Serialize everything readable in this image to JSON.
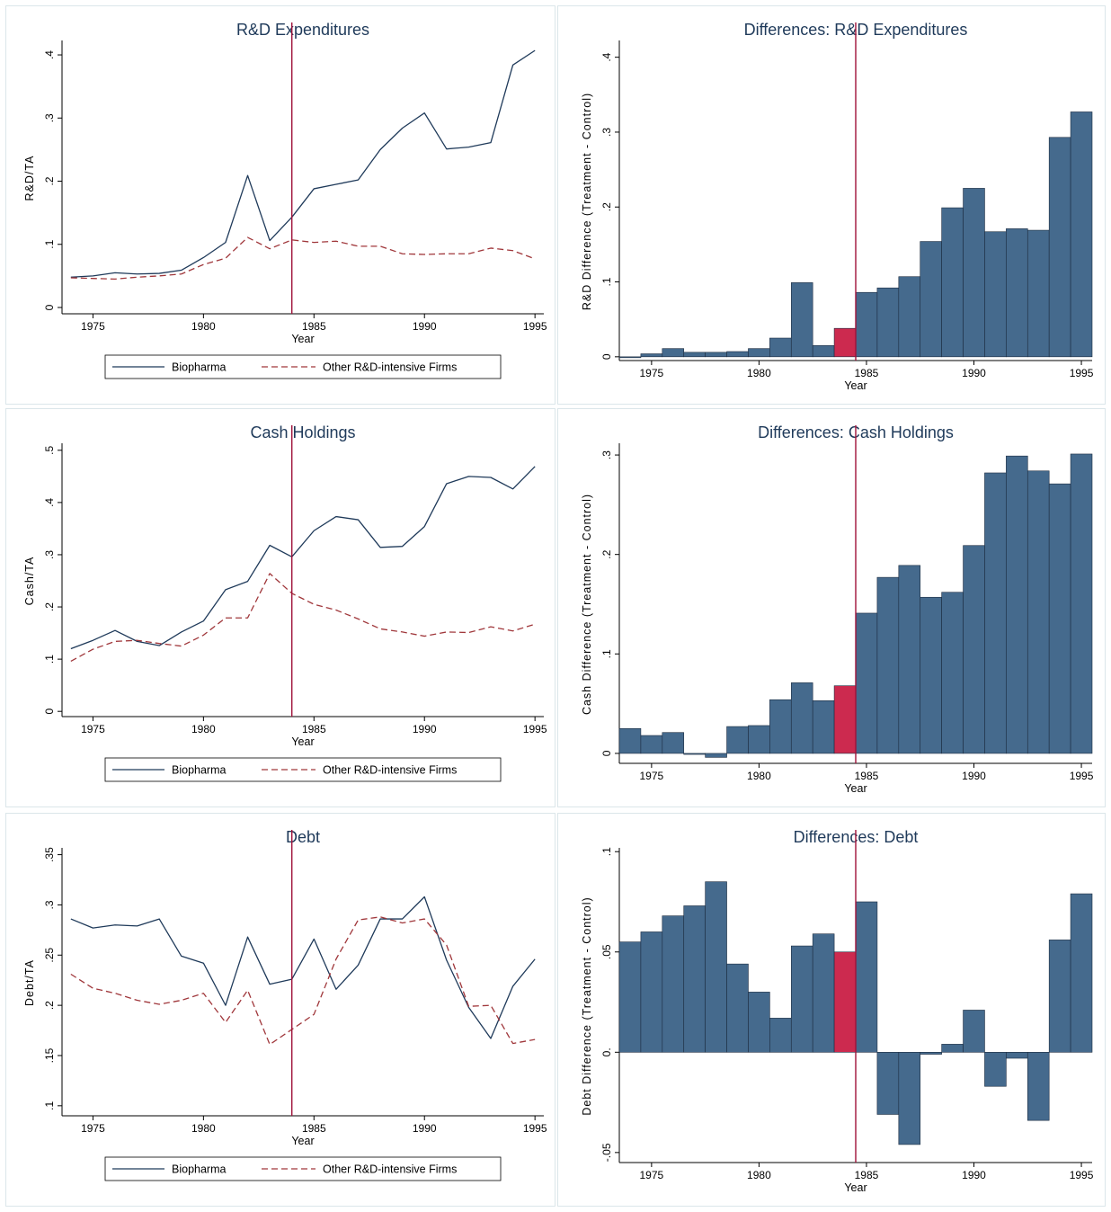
{
  "colors": {
    "biopharma": "#1f3a5a",
    "other": "#a0373b",
    "bar": "#456a8d",
    "bar_highlight": "#cc2a4f",
    "vline": "#a0123a",
    "title": "#1f3a5a"
  },
  "legend": {
    "series1": "Biopharma",
    "series2": "Other R&D-intensive Firms"
  },
  "chart_data": [
    {
      "id": "rd-levels",
      "type": "line",
      "title": "R&D Expenditures",
      "xlabel": "Year",
      "ylabel": "R&D/TA",
      "xlim": [
        1973.6,
        1995.4
      ],
      "ylim": [
        -0.01,
        0.42
      ],
      "xticks": [
        1975,
        1980,
        1985,
        1990,
        1995
      ],
      "xtick_labels": [
        "1975",
        "1980",
        "1985",
        "1990",
        "1995"
      ],
      "yticks": [
        0,
        0.1,
        0.2,
        0.3,
        0.4
      ],
      "ytick_labels": [
        "0",
        ".1",
        ".2",
        ".3",
        ".4"
      ],
      "vline": 1984,
      "legend_position": "bottom",
      "x": [
        1974,
        1975,
        1976,
        1977,
        1978,
        1979,
        1980,
        1981,
        1982,
        1983,
        1984,
        1985,
        1986,
        1987,
        1988,
        1989,
        1990,
        1991,
        1992,
        1993,
        1994,
        1995
      ],
      "series": [
        {
          "name": "Biopharma",
          "style": "solid",
          "values": [
            0.048,
            0.05,
            0.055,
            0.053,
            0.054,
            0.059,
            0.079,
            0.103,
            0.209,
            0.106,
            0.143,
            0.188,
            0.195,
            0.202,
            0.25,
            0.284,
            0.308,
            0.251,
            0.254,
            0.261,
            0.384,
            0.407
          ]
        },
        {
          "name": "Other R&D-intensive Firms",
          "style": "dash",
          "values": [
            0.047,
            0.046,
            0.045,
            0.048,
            0.05,
            0.053,
            0.068,
            0.078,
            0.111,
            0.093,
            0.107,
            0.103,
            0.105,
            0.097,
            0.097,
            0.085,
            0.084,
            0.085,
            0.085,
            0.094,
            0.09,
            0.077
          ]
        }
      ]
    },
    {
      "id": "rd-diff",
      "type": "bar",
      "title": "Differences: R&D Expenditures",
      "xlabel": "Year",
      "ylabel": "R&D Difference (Treatment - Control)",
      "xlim": [
        1973.5,
        1995.5
      ],
      "ylim": [
        -0.005,
        0.42
      ],
      "xticks": [
        1975,
        1980,
        1985,
        1990,
        1995
      ],
      "xtick_labels": [
        "1975",
        "1980",
        "1985",
        "1990",
        "1995"
      ],
      "yticks": [
        0,
        0.1,
        0.2,
        0.3,
        0.4
      ],
      "ytick_labels": [
        "0",
        ".1",
        ".2",
        ".3",
        ".4"
      ],
      "vline": 1984.5,
      "highlight_year": 1984,
      "categories": [
        1974,
        1975,
        1976,
        1977,
        1978,
        1979,
        1980,
        1981,
        1982,
        1983,
        1984,
        1985,
        1986,
        1987,
        1988,
        1989,
        1990,
        1991,
        1992,
        1993,
        1994,
        1995
      ],
      "values": [
        -0.001,
        0.004,
        0.011,
        0.006,
        0.006,
        0.007,
        0.011,
        0.025,
        0.099,
        0.015,
        0.038,
        0.086,
        0.092,
        0.107,
        0.154,
        0.199,
        0.225,
        0.167,
        0.171,
        0.169,
        0.293,
        0.327
      ]
    },
    {
      "id": "cash-levels",
      "type": "line",
      "title": "Cash Holdings",
      "xlabel": "Year",
      "ylabel": "Cash/TA",
      "xlim": [
        1973.6,
        1995.4
      ],
      "ylim": [
        -0.01,
        0.51
      ],
      "xticks": [
        1975,
        1980,
        1985,
        1990,
        1995
      ],
      "xtick_labels": [
        "1975",
        "1980",
        "1985",
        "1990",
        "1995"
      ],
      "yticks": [
        0,
        0.1,
        0.2,
        0.3,
        0.4,
        0.5
      ],
      "ytick_labels": [
        "0",
        ".1",
        ".2",
        ".3",
        ".4",
        ".5"
      ],
      "vline": 1984,
      "legend_position": "bottom",
      "x": [
        1974,
        1975,
        1976,
        1977,
        1978,
        1979,
        1980,
        1981,
        1982,
        1983,
        1984,
        1985,
        1986,
        1987,
        1988,
        1989,
        1990,
        1991,
        1992,
        1993,
        1994,
        1995
      ],
      "series": [
        {
          "name": "Biopharma",
          "style": "solid",
          "values": [
            0.12,
            0.136,
            0.155,
            0.134,
            0.126,
            0.152,
            0.173,
            0.233,
            0.249,
            0.318,
            0.296,
            0.346,
            0.373,
            0.367,
            0.314,
            0.316,
            0.354,
            0.436,
            0.45,
            0.448,
            0.426,
            0.469
          ]
        },
        {
          "name": "Other R&D-intensive Firms",
          "style": "dash",
          "values": [
            0.096,
            0.119,
            0.134,
            0.136,
            0.13,
            0.125,
            0.146,
            0.179,
            0.179,
            0.264,
            0.226,
            0.205,
            0.194,
            0.177,
            0.158,
            0.152,
            0.144,
            0.152,
            0.151,
            0.162,
            0.154,
            0.167
          ]
        }
      ]
    },
    {
      "id": "cash-diff",
      "type": "bar",
      "title": "Differences: Cash Holdings",
      "xlabel": "Year",
      "ylabel": "Cash Difference (Treatment - Control)",
      "xlim": [
        1973.5,
        1995.5
      ],
      "ylim": [
        -0.01,
        0.31
      ],
      "xticks": [
        1975,
        1980,
        1985,
        1990,
        1995
      ],
      "xtick_labels": [
        "1975",
        "1980",
        "1985",
        "1990",
        "1995"
      ],
      "yticks": [
        0,
        0.1,
        0.2,
        0.3
      ],
      "ytick_labels": [
        "0",
        ".1",
        ".2",
        ".3"
      ],
      "vline": 1984.5,
      "highlight_year": 1984,
      "categories": [
        1974,
        1975,
        1976,
        1977,
        1978,
        1979,
        1980,
        1981,
        1982,
        1983,
        1984,
        1985,
        1986,
        1987,
        1988,
        1989,
        1990,
        1991,
        1992,
        1993,
        1994,
        1995
      ],
      "values": [
        0.025,
        0.018,
        0.021,
        -0.001,
        -0.004,
        0.027,
        0.028,
        0.054,
        0.071,
        0.053,
        0.068,
        0.141,
        0.177,
        0.189,
        0.157,
        0.162,
        0.209,
        0.282,
        0.299,
        0.284,
        0.271,
        0.301
      ]
    },
    {
      "id": "debt-levels",
      "type": "line",
      "title": "Debt",
      "xlabel": "Year",
      "ylabel": "Debt/TA",
      "xlim": [
        1973.6,
        1995.4
      ],
      "ylim": [
        0.09,
        0.355
      ],
      "xticks": [
        1975,
        1980,
        1985,
        1990,
        1995
      ],
      "xtick_labels": [
        "1975",
        "1980",
        "1985",
        "1990",
        "1995"
      ],
      "yticks": [
        0.1,
        0.15,
        0.2,
        0.25,
        0.3,
        0.35
      ],
      "ytick_labels": [
        ".1",
        ".15",
        ".2",
        ".25",
        ".3",
        ".35"
      ],
      "vline": 1984,
      "legend_position": "bottom",
      "x": [
        1974,
        1975,
        1976,
        1977,
        1978,
        1979,
        1980,
        1981,
        1982,
        1983,
        1984,
        1985,
        1986,
        1987,
        1988,
        1989,
        1990,
        1991,
        1992,
        1993,
        1994,
        1995
      ],
      "series": [
        {
          "name": "Biopharma",
          "style": "solid",
          "values": [
            0.286,
            0.277,
            0.28,
            0.279,
            0.286,
            0.249,
            0.242,
            0.2,
            0.268,
            0.221,
            0.226,
            0.266,
            0.216,
            0.24,
            0.286,
            0.286,
            0.308,
            0.245,
            0.198,
            0.167,
            0.219,
            0.246
          ]
        },
        {
          "name": "Other R&D-intensive Firms",
          "style": "dash",
          "values": [
            0.231,
            0.217,
            0.212,
            0.205,
            0.201,
            0.205,
            0.212,
            0.183,
            0.215,
            0.161,
            0.176,
            0.191,
            0.246,
            0.285,
            0.288,
            0.282,
            0.286,
            0.26,
            0.199,
            0.2,
            0.162,
            0.166
          ]
        }
      ]
    },
    {
      "id": "debt-diff",
      "type": "bar",
      "title": "Differences: Debt",
      "xlabel": "Year",
      "ylabel": "Debt Difference (Treatment - Control)",
      "xlim": [
        1973.5,
        1995.5
      ],
      "ylim": [
        -0.055,
        0.101
      ],
      "xticks": [
        1975,
        1980,
        1985,
        1990,
        1995
      ],
      "xtick_labels": [
        "1975",
        "1980",
        "1985",
        "1990",
        "1995"
      ],
      "yticks": [
        -0.05,
        0,
        0.05,
        0.1
      ],
      "ytick_labels": [
        "-.05",
        "0.",
        ".05",
        ".1"
      ],
      "vline": 1984.5,
      "highlight_year": 1984,
      "categories": [
        1974,
        1975,
        1976,
        1977,
        1978,
        1979,
        1980,
        1981,
        1982,
        1983,
        1984,
        1985,
        1986,
        1987,
        1988,
        1989,
        1990,
        1991,
        1992,
        1993,
        1994,
        1995
      ],
      "values": [
        0.055,
        0.06,
        0.068,
        0.073,
        0.085,
        0.044,
        0.03,
        0.017,
        0.053,
        0.059,
        0.05,
        0.075,
        -0.031,
        -0.046,
        -0.001,
        0.004,
        0.021,
        -0.017,
        -0.003,
        -0.034,
        0.056,
        0.079
      ]
    }
  ]
}
